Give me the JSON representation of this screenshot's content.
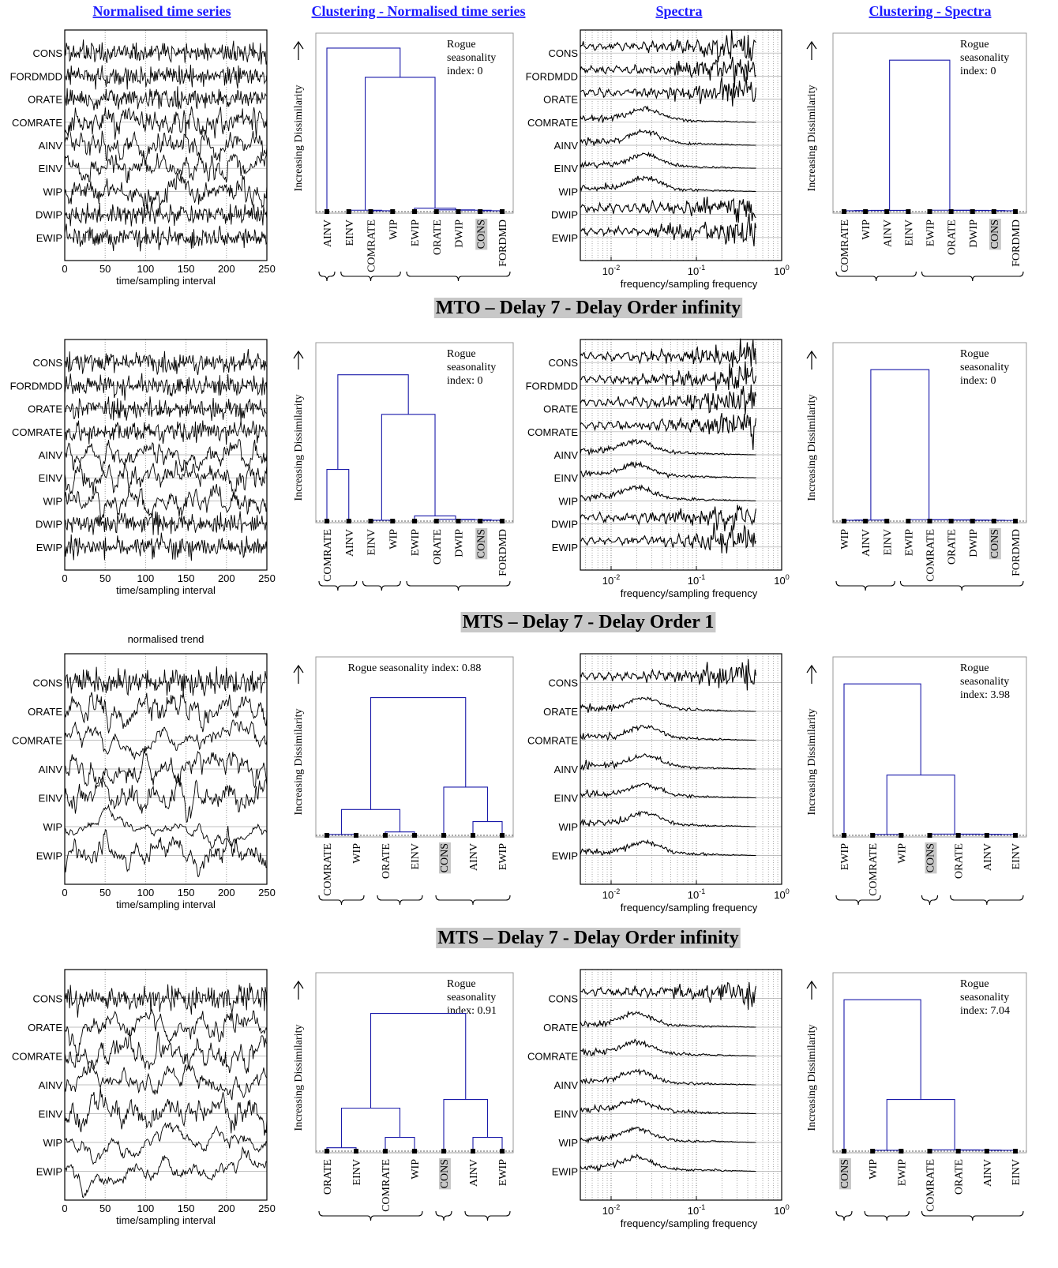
{
  "headers": [
    "Normalised time series",
    "Clustering - Normalised time series",
    "Spectra",
    "Clustering - Spectra"
  ],
  "rows": [
    {
      "time_series": {
        "labels": [
          "CONS",
          "FORDMDD",
          "ORATE",
          "COMRATE",
          "AINV",
          "EINV",
          "WIP",
          "DWIP",
          "EWIP"
        ],
        "xticks": [
          0,
          50,
          100,
          150,
          200,
          250
        ],
        "xlabel": "time/sampling interval"
      },
      "clustering_ts": {
        "ylabel": "Increasing Dissimilarity",
        "rogue": [
          "Rogue",
          "seasonality",
          "index: 0"
        ],
        "leaves": [
          "AINV",
          "EINV",
          "COMRATE",
          "WIP",
          "EWIP",
          "ORATE",
          "DWIP",
          "CONS",
          "FORDMD"
        ]
      },
      "spectra": {
        "labels": [
          "CONS",
          "FORDMDD",
          "ORATE",
          "COMRATE",
          "AINV",
          "EINV",
          "WIP",
          "DWIP",
          "EWIP"
        ],
        "xticks": [
          {
            "base": "10",
            "exp": "-2"
          },
          {
            "base": "10",
            "exp": "-1"
          },
          {
            "base": "10",
            "exp": "0"
          }
        ],
        "xlabel": "frequency/sampling frequency"
      },
      "clustering_spectra": {
        "ylabel": "Increasing Dissimilarity",
        "rogue": [
          "Rogue",
          "seasonality",
          "index: 0"
        ],
        "leaves": [
          "COMRATE",
          "WIP",
          "AINV",
          "EINV",
          "EWIP",
          "ORATE",
          "DWIP",
          "CONS",
          "FORDMD"
        ]
      }
    },
    {
      "title": "MTO – Delay 7 - Delay Order infinity",
      "time_series": {
        "labels": [
          "CONS",
          "FORDMDD",
          "ORATE",
          "COMRATE",
          "AINV",
          "EINV",
          "WIP",
          "DWIP",
          "EWIP"
        ],
        "xticks": [
          0,
          50,
          100,
          150,
          200,
          250
        ],
        "xlabel": "time/sampling interval"
      },
      "clustering_ts": {
        "ylabel": "Increasing Dissimilarity",
        "rogue": [
          "Rogue",
          "seasonality",
          "index: 0"
        ],
        "leaves": [
          "COMRATE",
          "AINV",
          "EINV",
          "WIP",
          "EWIP",
          "ORATE",
          "DWIP",
          "CONS",
          "FORDMD"
        ]
      },
      "spectra": {
        "labels": [
          "CONS",
          "FORDMDD",
          "ORATE",
          "COMRATE",
          "AINV",
          "EINV",
          "WIP",
          "DWIP",
          "EWIP"
        ],
        "xticks": [
          {
            "base": "10",
            "exp": "-2"
          },
          {
            "base": "10",
            "exp": "-1"
          },
          {
            "base": "10",
            "exp": "0"
          }
        ],
        "xlabel": "frequency/sampling frequency"
      },
      "clustering_spectra": {
        "ylabel": "Increasing Dissimilarity",
        "rogue": [
          "Rogue",
          "seasonality",
          "index: 0"
        ],
        "leaves": [
          "WIP",
          "AINV",
          "EINV",
          "EWIP",
          "COMRATE",
          "ORATE",
          "DWIP",
          "CONS",
          "FORDMD"
        ]
      }
    },
    {
      "title": "MTS – Delay 7 - Delay Order 1",
      "time_series": {
        "note": "normalised trend",
        "labels": [
          "CONS",
          "ORATE",
          "COMRATE",
          "AINV",
          "EINV",
          "WIP",
          "EWIP"
        ],
        "xticks": [
          0,
          50,
          100,
          150,
          200,
          250
        ],
        "xlabel": "time/sampling interval"
      },
      "clustering_ts": {
        "ylabel": "Increasing Dissimilarity",
        "rogue": [
          "Rogue seasonality index: 0.88"
        ],
        "leaves": [
          "COMRATE",
          "WIP",
          "ORATE",
          "EINV",
          "CONS",
          "AINV",
          "EWIP"
        ]
      },
      "spectra": {
        "labels": [
          "CONS",
          "ORATE",
          "COMRATE",
          "AINV",
          "EINV",
          "WIP",
          "EWIP"
        ],
        "xticks": [
          {
            "base": "10",
            "exp": "-2"
          },
          {
            "base": "10",
            "exp": "-1"
          },
          {
            "base": "10",
            "exp": "0"
          }
        ],
        "xlabel": "frequency/sampling frequency"
      },
      "clustering_spectra": {
        "ylabel": "Increasing Dissimilarity",
        "rogue": [
          "Rogue",
          "seasonality",
          "index: 3.98"
        ],
        "leaves": [
          "EWIP",
          "COMRATE",
          "WIP",
          "CONS",
          "ORATE",
          "AINV",
          "EINV"
        ]
      }
    },
    {
      "title": "MTS – Delay 7 - Delay Order infinity",
      "time_series": {
        "labels": [
          "CONS",
          "ORATE",
          "COMRATE",
          "AINV",
          "EINV",
          "WIP",
          "EWIP"
        ],
        "xticks": [
          0,
          50,
          100,
          150,
          200,
          250
        ],
        "xlabel": "time/sampling interval"
      },
      "clustering_ts": {
        "ylabel": "Increasing Dissimilarity",
        "rogue": [
          "Rogue",
          "seasonality",
          "index: 0.91"
        ],
        "leaves": [
          "ORATE",
          "EINV",
          "COMRATE",
          "WIP",
          "CONS",
          "AINV",
          "EWIP"
        ]
      },
      "spectra": {
        "labels": [
          "CONS",
          "ORATE",
          "COMRATE",
          "AINV",
          "EINV",
          "WIP",
          "EWIP"
        ],
        "xticks": [
          {
            "base": "10",
            "exp": "-2"
          },
          {
            "base": "10",
            "exp": "-1"
          },
          {
            "base": "10",
            "exp": "0"
          }
        ],
        "xlabel": "frequency/sampling frequency"
      },
      "clustering_spectra": {
        "ylabel": "Increasing Dissimilarity",
        "rogue": [
          "Rogue",
          "seasonality",
          "index: 7.04"
        ],
        "leaves": [
          "CONS",
          "WIP",
          "EWIP",
          "COMRATE",
          "ORATE",
          "AINV",
          "EINV"
        ]
      }
    }
  ]
}
